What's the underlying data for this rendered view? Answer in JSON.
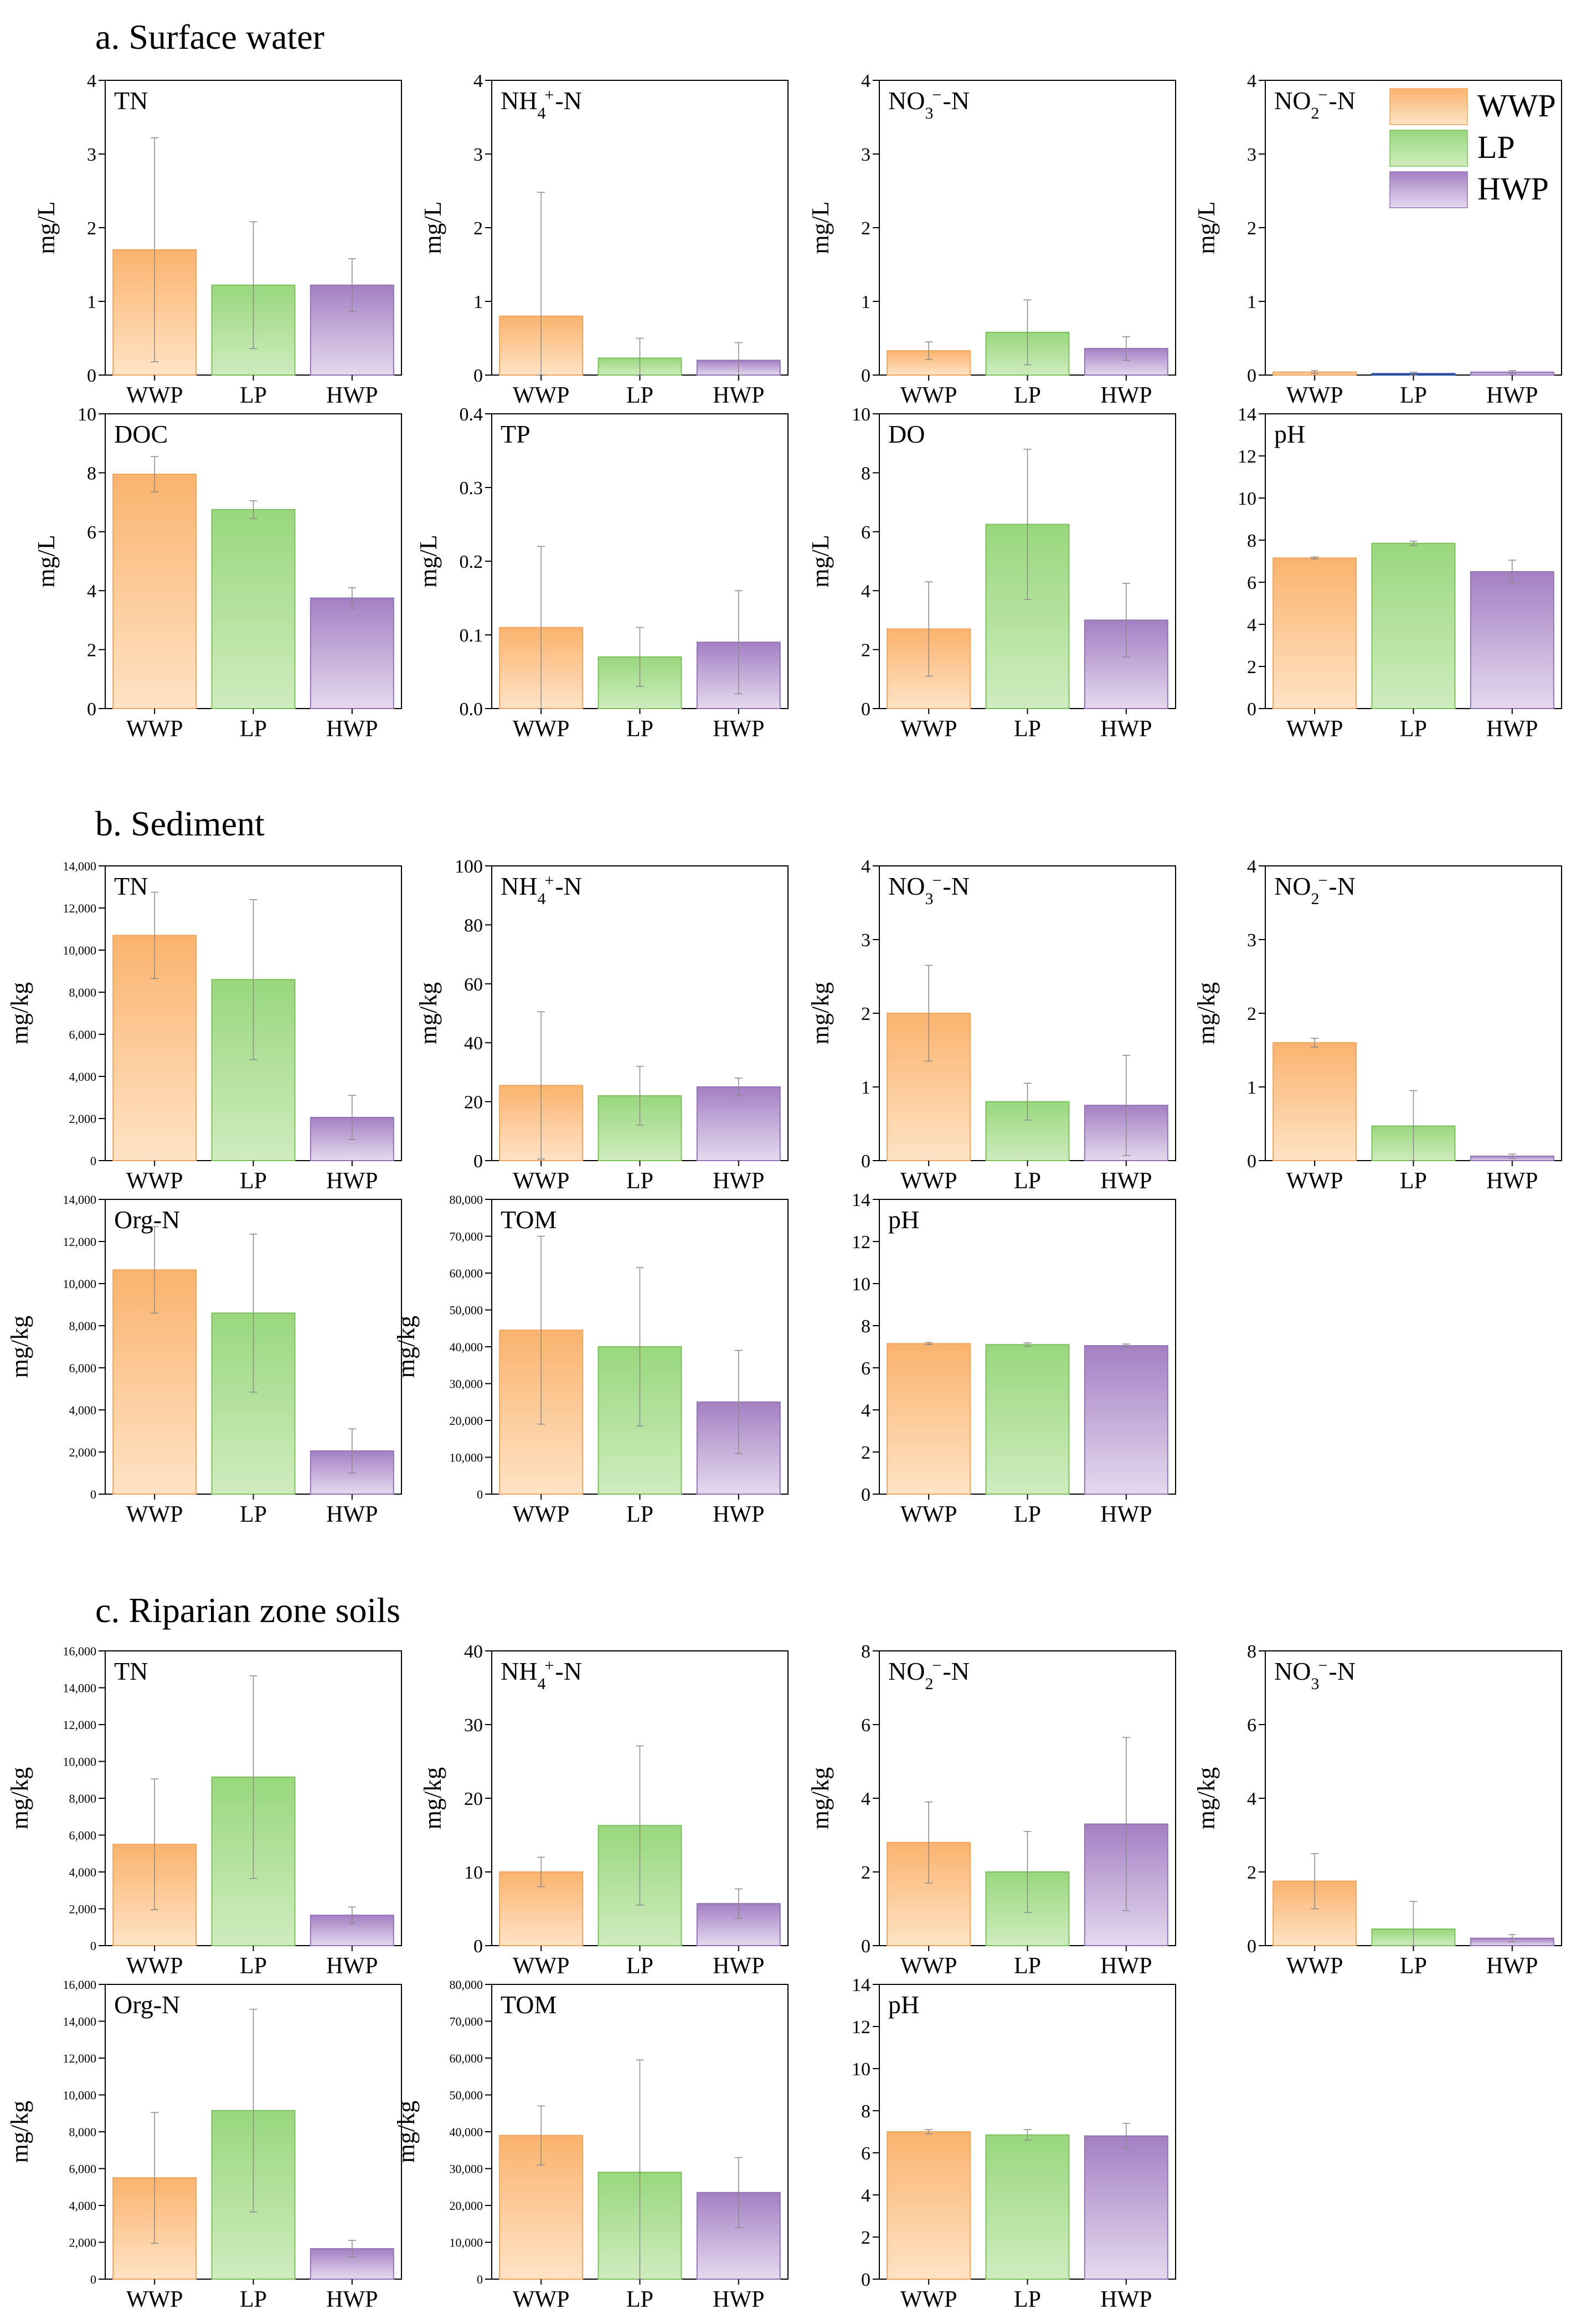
{
  "colors": {
    "WWP": {
      "top": "#fab36e",
      "bottom": "#ffe3c6",
      "stroke": "#eea560"
    },
    "LP": {
      "top": "#99d77d",
      "bottom": "#cfecbf",
      "stroke": "#7cc05e"
    },
    "HWP": {
      "top": "#a480c4",
      "bottom": "#e5d9ee",
      "stroke": "#9274b4"
    },
    "HWP_nitrite_highlight": "#2c4fa8"
  },
  "legend": [
    {
      "key": "WWP",
      "label": "WWP"
    },
    {
      "key": "LP",
      "label": "LP"
    },
    {
      "key": "HWP",
      "label": "HWP"
    }
  ],
  "sections": [
    {
      "id": "a",
      "title": "a. Surface water"
    },
    {
      "id": "b",
      "title": "b. Sediment"
    },
    {
      "id": "c",
      "title": "c. Riparian zone soils"
    }
  ],
  "chart_data": [
    {
      "section": "a",
      "type": "bar",
      "label": "TN",
      "ylabel": "mg/L",
      "categories": [
        "WWP",
        "LP",
        "HWP"
      ],
      "ylim": [
        0,
        4
      ],
      "yticks": [
        "0",
        "1",
        "2",
        "3",
        "4"
      ],
      "values": [
        1.7,
        1.22,
        1.22
      ],
      "errors": [
        1.52,
        0.86,
        0.36
      ]
    },
    {
      "section": "a",
      "type": "bar",
      "label": "NH4+-N",
      "ylabel": "mg/L",
      "categories": [
        "WWP",
        "LP",
        "HWP"
      ],
      "ylim": [
        0,
        4
      ],
      "yticks": [
        "0",
        "1",
        "2",
        "3",
        "4"
      ],
      "values": [
        0.8,
        0.23,
        0.2
      ],
      "errors": [
        1.68,
        0.27,
        0.24
      ]
    },
    {
      "section": "a",
      "type": "bar",
      "label": "NO3−-N",
      "ylabel": "mg/L",
      "categories": [
        "WWP",
        "LP",
        "HWP"
      ],
      "ylim": [
        0,
        4
      ],
      "yticks": [
        "0",
        "1",
        "2",
        "3",
        "4"
      ],
      "values": [
        0.33,
        0.58,
        0.36
      ],
      "errors": [
        0.12,
        0.44,
        0.16
      ]
    },
    {
      "section": "a",
      "type": "bar",
      "label": "NO2−-N",
      "ylabel": "mg/L",
      "categories": [
        "WWP",
        "LP",
        "HWP"
      ],
      "ylim": [
        0,
        4
      ],
      "yticks": [
        "0",
        "1",
        "2",
        "3",
        "4"
      ],
      "values": [
        0.04,
        0.02,
        0.04
      ],
      "errors": [
        0.02,
        0.02,
        0.02
      ],
      "legend": true
    },
    {
      "section": "a",
      "type": "bar",
      "label": "DOC",
      "ylabel": "mg/L",
      "categories": [
        "WWP",
        "LP",
        "HWP"
      ],
      "ylim": [
        0,
        10
      ],
      "yticks": [
        "0",
        "2",
        "4",
        "6",
        "8",
        "10"
      ],
      "values": [
        7.95,
        6.75,
        3.75
      ],
      "errors": [
        0.6,
        0.3,
        0.35
      ]
    },
    {
      "section": "a",
      "type": "bar",
      "label": "TP",
      "ylabel": "mg/L",
      "categories": [
        "WWP",
        "LP",
        "HWP"
      ],
      "ylim": [
        0,
        0.4
      ],
      "yticks": [
        "0.0",
        "0.1",
        "0.2",
        "0.3",
        "0.4"
      ],
      "values": [
        0.11,
        0.07,
        0.09
      ],
      "errors": [
        0.11,
        0.04,
        0.07
      ]
    },
    {
      "section": "a",
      "type": "bar",
      "label": "DO",
      "ylabel": "mg/L",
      "categories": [
        "WWP",
        "LP",
        "HWP"
      ],
      "ylim": [
        0,
        10
      ],
      "yticks": [
        "0",
        "2",
        "4",
        "6",
        "8",
        "10"
      ],
      "values": [
        2.7,
        6.25,
        3.0
      ],
      "errors": [
        1.6,
        2.55,
        1.25
      ]
    },
    {
      "section": "a",
      "type": "bar",
      "label": "pH",
      "ylabel": "",
      "categories": [
        "WWP",
        "LP",
        "HWP"
      ],
      "ylim": [
        0,
        14
      ],
      "yticks": [
        "0",
        "2",
        "4",
        "6",
        "8",
        "10",
        "12",
        "14"
      ],
      "values": [
        7.15,
        7.85,
        6.5
      ],
      "errors": [
        0.05,
        0.1,
        0.55
      ]
    },
    {
      "section": "b",
      "type": "bar",
      "label": "TN",
      "ylabel": "mg/kg",
      "categories": [
        "WWP",
        "LP",
        "HWP"
      ],
      "ylim": [
        0,
        14000
      ],
      "yticks": [
        "0",
        "2,000",
        "4,000",
        "6,000",
        "8,000",
        "10,000",
        "12,000",
        "14,000"
      ],
      "values": [
        10700,
        8600,
        2050
      ],
      "errors": [
        2050,
        3800,
        1050
      ]
    },
    {
      "section": "b",
      "type": "bar",
      "label": "NH4+-N",
      "ylabel": "mg/kg",
      "categories": [
        "WWP",
        "LP",
        "HWP"
      ],
      "ylim": [
        0,
        100
      ],
      "yticks": [
        "0",
        "20",
        "40",
        "60",
        "80",
        "100"
      ],
      "values": [
        25.5,
        22,
        25
      ],
      "errors": [
        25,
        10,
        3
      ]
    },
    {
      "section": "b",
      "type": "bar",
      "label": "NO3−-N",
      "ylabel": "mg/kg",
      "categories": [
        "WWP",
        "LP",
        "HWP"
      ],
      "ylim": [
        0,
        4
      ],
      "yticks": [
        "0",
        "1",
        "2",
        "3",
        "4"
      ],
      "values": [
        2.0,
        0.8,
        0.75
      ],
      "errors": [
        0.65,
        0.25,
        0.68
      ]
    },
    {
      "section": "b",
      "type": "bar",
      "label": "NO2−-N",
      "ylabel": "mg/kg",
      "categories": [
        "WWP",
        "LP",
        "HWP"
      ],
      "ylim": [
        0,
        4
      ],
      "yticks": [
        "0",
        "1",
        "2",
        "3",
        "4"
      ],
      "values": [
        1.6,
        0.47,
        0.06
      ],
      "errors": [
        0.06,
        0.48,
        0.03
      ]
    },
    {
      "section": "b",
      "type": "bar",
      "label": "Org-N",
      "ylabel": "mg/kg",
      "categories": [
        "WWP",
        "LP",
        "HWP"
      ],
      "ylim": [
        0,
        14000
      ],
      "yticks": [
        "0",
        "2,000",
        "4,000",
        "6,000",
        "8,000",
        "10,000",
        "12,000",
        "14,000"
      ],
      "values": [
        10650,
        8600,
        2050
      ],
      "errors": [
        2050,
        3750,
        1050
      ]
    },
    {
      "section": "b",
      "type": "bar",
      "label": "TOM",
      "ylabel": "mg/kg",
      "categories": [
        "WWP",
        "LP",
        "HWP"
      ],
      "ylim": [
        0,
        80000
      ],
      "yticks": [
        "0",
        "10,000",
        "20,000",
        "30,000",
        "40,000",
        "50,000",
        "60,000",
        "70,000",
        "80,000"
      ],
      "values": [
        44500,
        40000,
        25000
      ],
      "errors": [
        25500,
        21500,
        14000
      ]
    },
    {
      "section": "b",
      "type": "bar",
      "label": "pH",
      "ylabel": "",
      "categories": [
        "WWP",
        "LP",
        "HWP"
      ],
      "ylim": [
        0,
        14
      ],
      "yticks": [
        "0",
        "2",
        "4",
        "6",
        "8",
        "10",
        "12",
        "14"
      ],
      "values": [
        7.15,
        7.1,
        7.05
      ],
      "errors": [
        0.05,
        0.08,
        0.08
      ]
    },
    {
      "section": "c",
      "type": "bar",
      "label": "TN",
      "ylabel": "mg/kg",
      "categories": [
        "WWP",
        "LP",
        "HWP"
      ],
      "ylim": [
        0,
        16000
      ],
      "yticks": [
        "0",
        "2,000",
        "4,000",
        "6,000",
        "8,000",
        "10,000",
        "12,000",
        "14,000",
        "16,000"
      ],
      "values": [
        5500,
        9150,
        1650
      ],
      "errors": [
        3550,
        5500,
        450
      ]
    },
    {
      "section": "c",
      "type": "bar",
      "label": "NH4+-N",
      "ylabel": "mg/kg",
      "categories": [
        "WWP",
        "LP",
        "HWP"
      ],
      "ylim": [
        0,
        40
      ],
      "yticks": [
        "0",
        "10",
        "20",
        "30",
        "40"
      ],
      "values": [
        10,
        16.3,
        5.7
      ],
      "errors": [
        2,
        10.8,
        2
      ]
    },
    {
      "section": "c",
      "type": "bar",
      "label": "NO2−-N",
      "ylabel": "mg/kg",
      "categories": [
        "WWP",
        "LP",
        "HWP"
      ],
      "ylim": [
        0,
        8
      ],
      "yticks": [
        "0",
        "2",
        "4",
        "6",
        "8"
      ],
      "values": [
        2.8,
        2.0,
        3.3
      ],
      "errors": [
        1.1,
        1.1,
        2.35
      ]
    },
    {
      "section": "c",
      "type": "bar",
      "label": "NO3−-N",
      "ylabel": "mg/kg",
      "categories": [
        "WWP",
        "LP",
        "HWP"
      ],
      "ylim": [
        0,
        8
      ],
      "yticks": [
        "0",
        "2",
        "4",
        "6",
        "8"
      ],
      "values": [
        1.75,
        0.45,
        0.2
      ],
      "errors": [
        0.75,
        0.75,
        0.1
      ]
    },
    {
      "section": "c",
      "type": "bar",
      "label": "Org-N",
      "ylabel": "mg/kg",
      "categories": [
        "WWP",
        "LP",
        "HWP"
      ],
      "ylim": [
        0,
        16000
      ],
      "yticks": [
        "0",
        "2,000",
        "4,000",
        "6,000",
        "8,000",
        "10,000",
        "12,000",
        "14,000",
        "16,000"
      ],
      "values": [
        5500,
        9150,
        1650
      ],
      "errors": [
        3550,
        5500,
        450
      ]
    },
    {
      "section": "c",
      "type": "bar",
      "label": "TOM",
      "ylabel": "mg/kg",
      "categories": [
        "WWP",
        "LP",
        "HWP"
      ],
      "ylim": [
        0,
        80000
      ],
      "yticks": [
        "0",
        "10,000",
        "20,000",
        "30,000",
        "40,000",
        "50,000",
        "60,000",
        "70,000",
        "80,000"
      ],
      "values": [
        39000,
        29000,
        23500
      ],
      "errors": [
        8000,
        30500,
        9500
      ]
    },
    {
      "section": "c",
      "type": "bar",
      "label": "pH",
      "ylabel": "",
      "categories": [
        "WWP",
        "LP",
        "HWP"
      ],
      "ylim": [
        0,
        14
      ],
      "yticks": [
        "0",
        "2",
        "4",
        "6",
        "8",
        "10",
        "12",
        "14"
      ],
      "values": [
        7.0,
        6.85,
        6.8
      ],
      "errors": [
        0.1,
        0.25,
        0.6
      ]
    }
  ]
}
